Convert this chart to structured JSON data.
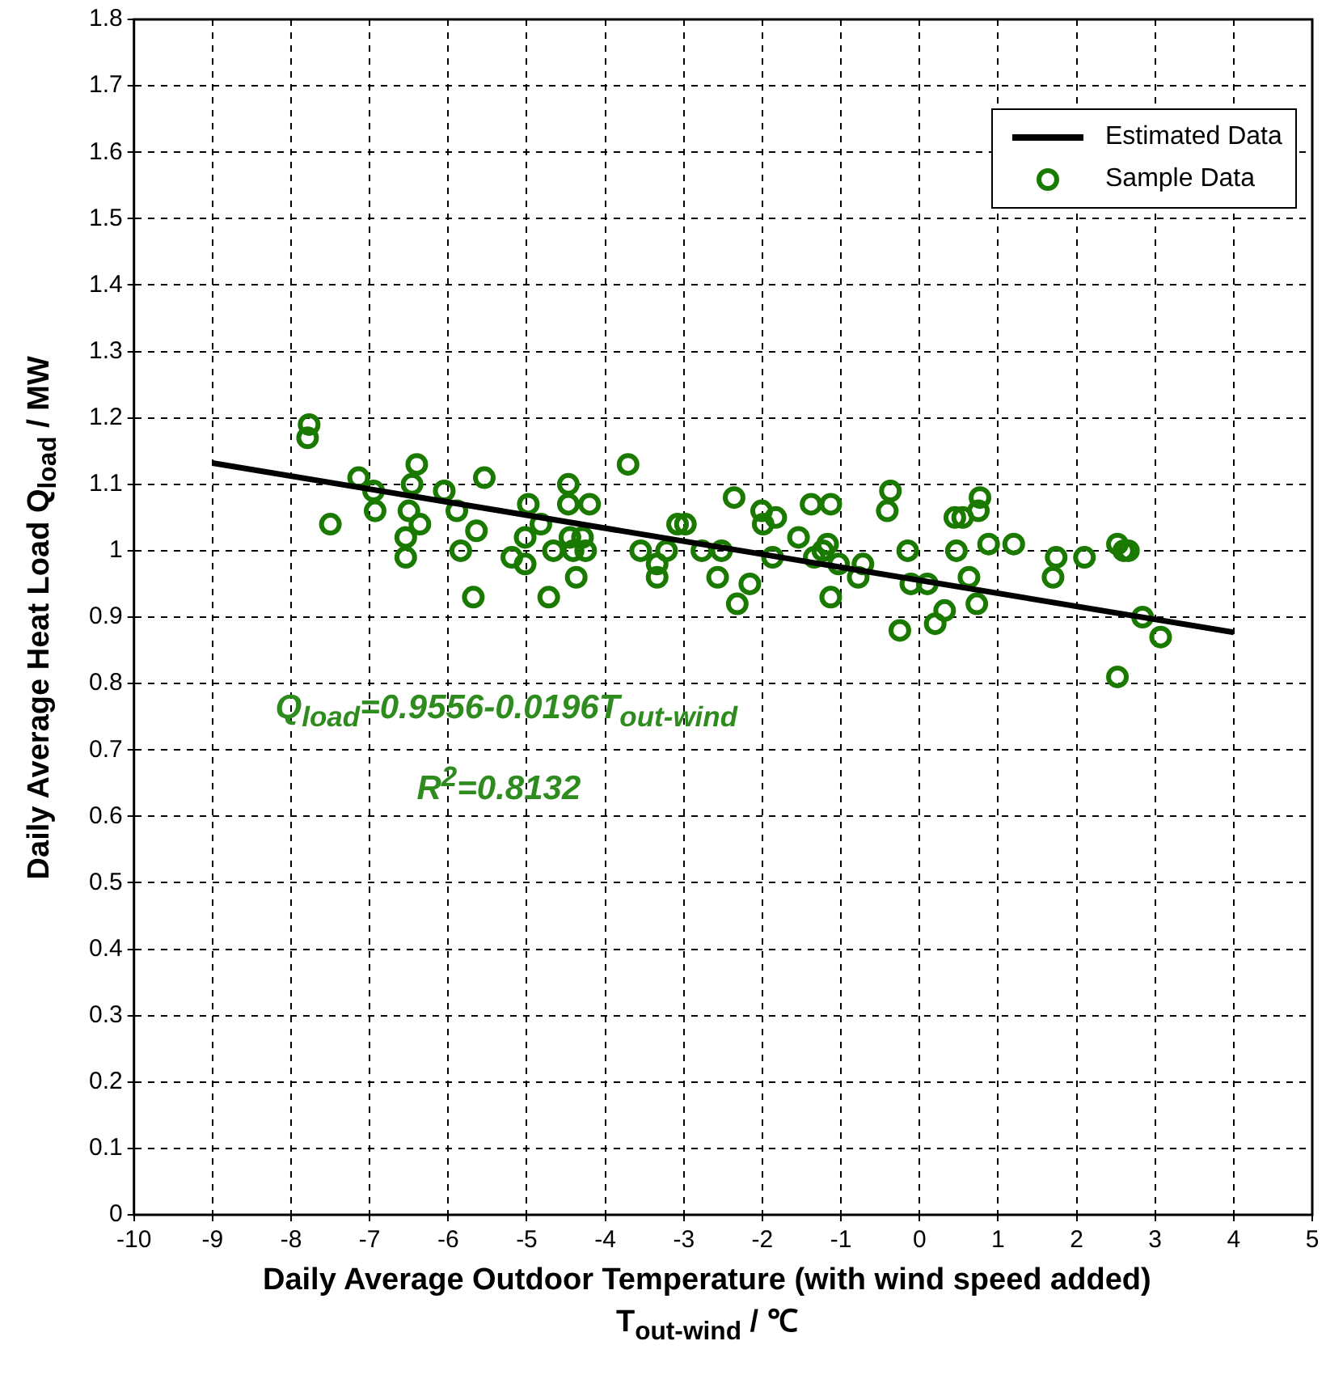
{
  "chart_data": {
    "type": "scatter",
    "xlabel": "Daily Average Outdoor Temperature (with wind speed added) T$_{out-wind}$ / ℃",
    "ylabel": "Daily Average Heat Load Q$_{load}$ / MW",
    "xlim": [
      -10,
      5
    ],
    "xticks": [
      -10,
      -9,
      -8,
      -7,
      -6,
      -5,
      -4,
      -3,
      -2,
      -1,
      0,
      1,
      2,
      3,
      4,
      5
    ],
    "ylim": [
      0,
      1.8
    ],
    "yticks": [
      0,
      0.1,
      0.2,
      0.3,
      0.4,
      0.5,
      0.6,
      0.7,
      0.8,
      0.9,
      1,
      1.1,
      1.2,
      1.3,
      1.4,
      1.5,
      1.6,
      1.7,
      1.8
    ],
    "grid": true,
    "legend": "top right",
    "annotations": [
      "Q$_{load}$=0.9556-0.0196T$_{out-wind}$",
      "R$^{2}$=0.8132"
    ],
    "series": [
      {
        "name": "Estimated Data",
        "type": "line",
        "color": "#000000",
        "marker": "none",
        "line_style": "solid",
        "x": [
          -9,
          4
        ],
        "values": [
          1.132,
          0.877
        ]
      },
      {
        "name": "Sample Data",
        "type": "scatter",
        "color": "#1a7a00",
        "marker": "circle",
        "x": [
          -7.77,
          -7.79,
          -7.5,
          -7.14,
          -6.95,
          -6.93,
          -6.4,
          -6.46,
          -6.5,
          -6.54,
          -6.54,
          -6.36,
          -6.05,
          -5.89,
          -5.84,
          -5.68,
          -5.64,
          -5.54,
          -5.19,
          -5.02,
          -4.98,
          -5.02,
          -4.82,
          -4.72,
          -4.66,
          -4.47,
          -4.47,
          -4.45,
          -4.37,
          -4.41,
          -4.29,
          -4.25,
          -4.2,
          -3.71,
          -3.55,
          -3.34,
          -3.34,
          -3.22,
          -3.08,
          -2.98,
          -2.77,
          -2.52,
          -2.57,
          -2.36,
          -2.32,
          -2.16,
          -2.01,
          -1.99,
          -1.87,
          -1.83,
          -1.54,
          -1.38,
          -1.34,
          -1.23,
          -1.17,
          -1.13,
          -1.13,
          -1.03,
          -0.78,
          -0.72,
          -0.37,
          -0.41,
          -0.15,
          -0.11,
          -0.25,
          0.1,
          0.2,
          0.32,
          0.45,
          0.55,
          0.47,
          0.63,
          0.73,
          0.77,
          0.75,
          0.88,
          1.2,
          1.7,
          1.74,
          2.1,
          2.52,
          2.52,
          2.6,
          2.66,
          2.84,
          3.07
        ],
        "values": [
          1.19,
          1.17,
          1.04,
          1.11,
          1.09,
          1.06,
          1.13,
          1.1,
          1.06,
          1.02,
          0.99,
          1.04,
          1.09,
          1.06,
          1.0,
          0.93,
          1.03,
          1.11,
          0.99,
          1.02,
          1.07,
          0.98,
          1.04,
          0.93,
          1.0,
          1.1,
          1.07,
          1.02,
          0.96,
          1.0,
          1.02,
          1.0,
          1.07,
          1.13,
          1.0,
          0.96,
          0.98,
          1.0,
          1.04,
          1.04,
          1.0,
          1.0,
          0.96,
          1.08,
          0.92,
          0.95,
          1.06,
          1.04,
          0.99,
          1.05,
          1.02,
          1.07,
          0.99,
          1.0,
          1.01,
          1.07,
          0.93,
          0.98,
          0.96,
          0.98,
          1.09,
          1.06,
          1.0,
          0.95,
          0.88,
          0.95,
          0.89,
          0.91,
          1.05,
          1.05,
          1.0,
          0.96,
          0.92,
          1.08,
          1.06,
          1.01,
          1.01,
          0.96,
          0.99,
          0.99,
          0.81,
          1.01,
          1.0,
          1.0,
          0.9,
          0.87
        ]
      }
    ]
  }
}
